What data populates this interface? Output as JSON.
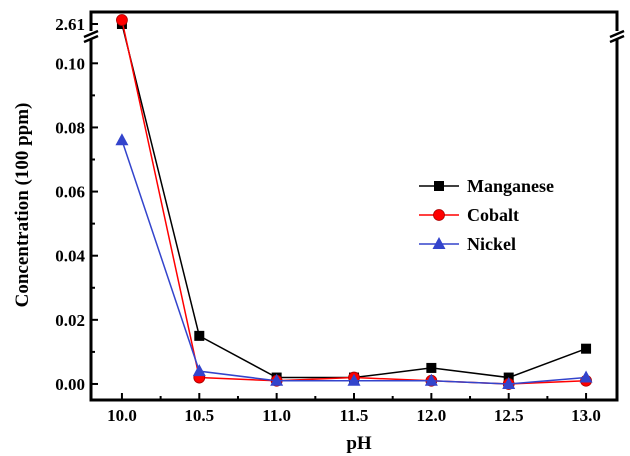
{
  "chart_data": {
    "type": "line",
    "title": "",
    "xlabel": "pH",
    "ylabel": "Concentration (100 ppm)",
    "x": [
      10.0,
      10.5,
      11.0,
      11.5,
      12.0,
      12.5,
      13.0
    ],
    "x_tick_labels": [
      "10.0",
      "10.5",
      "11.0",
      "11.5",
      "12.0",
      "12.5",
      "13.0"
    ],
    "xlim": [
      9.8,
      13.2
    ],
    "ylim": [
      -0.005,
      0.116
    ],
    "y_ticks": [
      0.0,
      0.02,
      0.04,
      0.06,
      0.08,
      0.1
    ],
    "y_tick_labels": [
      "0.00",
      "0.02",
      "0.04",
      "0.06",
      "0.08",
      "0.10"
    ],
    "axis_break": {
      "break_at": 0.1145,
      "upper_label": "2.61",
      "upper_value": 2.61
    },
    "grid": false,
    "legend_position": "right",
    "series": [
      {
        "name": "Manganese",
        "marker": "square",
        "color": "#000000",
        "values": [
          2.61,
          0.015,
          0.002,
          0.002,
          0.005,
          0.002,
          0.011
        ]
      },
      {
        "name": "Cobalt",
        "marker": "circle",
        "color": "#ff0000",
        "values": [
          0.1135,
          0.002,
          0.001,
          0.002,
          0.001,
          0.0,
          0.001
        ]
      },
      {
        "name": "Nickel",
        "marker": "triangle",
        "color": "#3344cc",
        "values": [
          0.076,
          0.004,
          0.001,
          0.001,
          0.001,
          0.0,
          0.002
        ]
      }
    ]
  }
}
